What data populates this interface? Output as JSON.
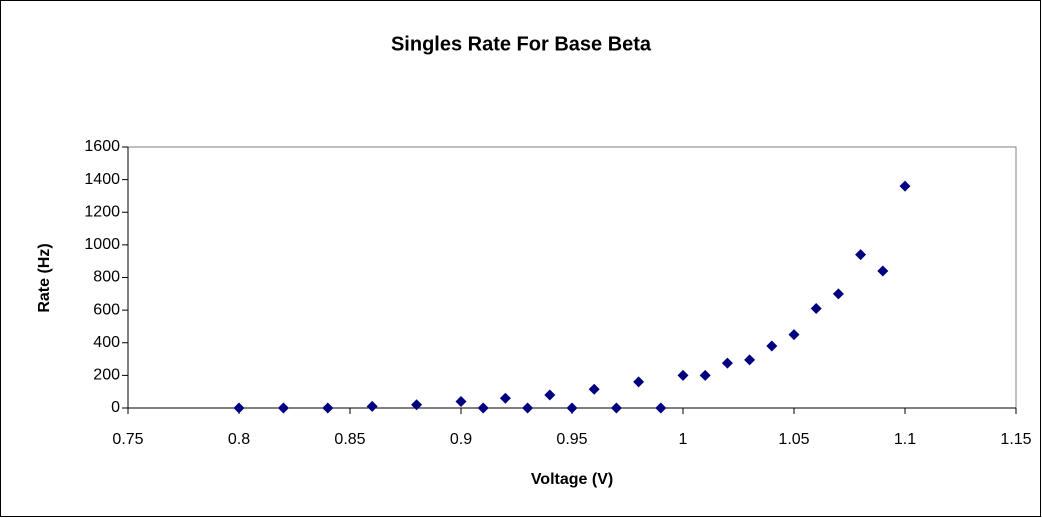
{
  "chart_data": {
    "type": "scatter",
    "title": "Singles Rate For Base Beta",
    "x_label": "Voltage (V)",
    "y_label": "Rate (Hz)",
    "series": [
      {
        "name": "Rate",
        "color": "#000080",
        "x": [
          0.8,
          0.82,
          0.84,
          0.86,
          0.88,
          0.9,
          0.91,
          0.92,
          0.93,
          0.94,
          0.95,
          0.96,
          0.97,
          0.98,
          0.99,
          1.0,
          1.01,
          1.02,
          1.03,
          1.04,
          1.05,
          1.06,
          1.07,
          1.08,
          1.09,
          1.1
        ],
        "values": [
          0,
          0,
          0,
          10,
          20,
          40,
          0,
          60,
          0,
          80,
          0,
          115,
          0,
          160,
          0,
          200,
          200,
          275,
          295,
          380,
          450,
          610,
          700,
          940,
          840,
          1360
        ]
      }
    ],
    "xlim": [
      0.75,
      1.15
    ],
    "xticks": [
      0.75,
      0.8,
      0.85,
      0.9,
      0.95,
      1,
      1.05,
      1.1,
      1.15
    ],
    "ylim": [
      0,
      1600
    ],
    "yticks": [
      0,
      200,
      400,
      600,
      800,
      1000,
      1200,
      1400,
      1600
    ],
    "grid": false
  }
}
